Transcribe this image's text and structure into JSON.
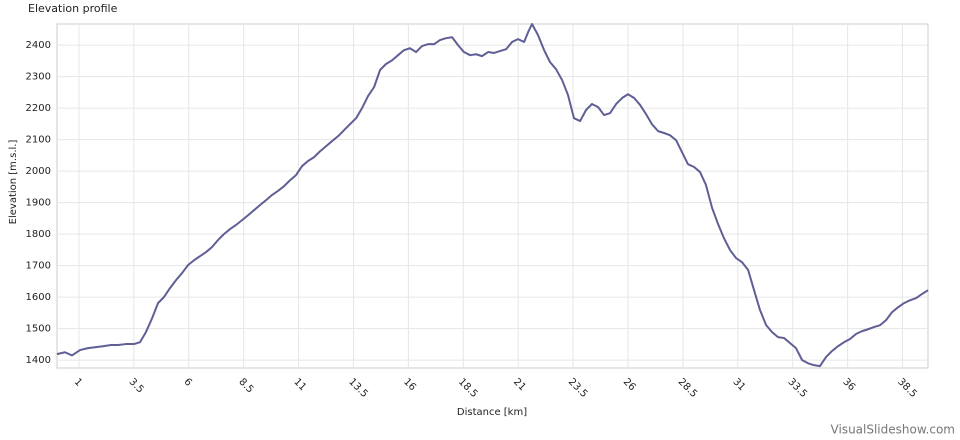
{
  "chart_data": {
    "type": "line",
    "title": "Elevation profile",
    "x_label": "Distance [km]",
    "y_label": "Elevation [m.s.l.]",
    "watermark": "VisualSlideshow.com",
    "xlim": [
      0,
      39.66
    ],
    "ylim": [
      1375,
      2467
    ],
    "xticks": [
      1,
      3.5,
      6,
      8.5,
      11,
      13.5,
      16,
      18.5,
      21,
      23.5,
      26,
      28.5,
      31,
      33.5,
      36,
      38.5
    ],
    "yticks": [
      1400,
      1500,
      1600,
      1700,
      1800,
      1900,
      2000,
      2100,
      2200,
      2300,
      2400
    ],
    "grid": true,
    "x": [
      0,
      0.36,
      0.68,
      1.05,
      1.41,
      1.73,
      2.09,
      2.46,
      2.78,
      3.14,
      3.51,
      3.78,
      4.05,
      4.33,
      4.6,
      4.87,
      5.15,
      5.42,
      5.69,
      5.97,
      6.24,
      6.51,
      6.79,
      7.06,
      7.33,
      7.6,
      7.88,
      8.15,
      8.42,
      8.7,
      8.97,
      9.24,
      9.52,
      9.79,
      10.06,
      10.34,
      10.61,
      10.88,
      11.16,
      11.43,
      11.7,
      11.98,
      12.25,
      12.52,
      12.8,
      13.07,
      13.34,
      13.62,
      13.89,
      14.16,
      14.44,
      14.71,
      14.98,
      15.26,
      15.53,
      15.8,
      16.07,
      16.35,
      16.62,
      16.89,
      17.17,
      17.44,
      17.71,
      17.99,
      18.26,
      18.53,
      18.81,
      19.08,
      19.35,
      19.63,
      19.9,
      20.17,
      20.45,
      20.72,
      20.99,
      21.27,
      21.45,
      21.63,
      21.9,
      22.18,
      22.45,
      22.72,
      23.0,
      23.27,
      23.54,
      23.82,
      24.09,
      24.36,
      24.64,
      24.91,
      25.18,
      25.46,
      25.73,
      26.0,
      26.28,
      26.55,
      26.82,
      27.09,
      27.37,
      27.64,
      27.91,
      28.19,
      28.46,
      28.73,
      29.01,
      29.28,
      29.55,
      29.83,
      30.1,
      30.37,
      30.65,
      30.92,
      31.19,
      31.47,
      31.74,
      32.01,
      32.29,
      32.56,
      32.83,
      33.11,
      33.38,
      33.65,
      33.93,
      34.2,
      34.47,
      34.74,
      35.02,
      35.29,
      35.56,
      35.84,
      36.11,
      36.38,
      36.66,
      36.93,
      37.2,
      37.48,
      37.75,
      38.02,
      38.3,
      38.57,
      38.84,
      39.12,
      39.39,
      39.66
    ],
    "series": [
      {
        "color": "#5f5f96",
        "values": [
          1419,
          1425,
          1415,
          1432,
          1438,
          1441,
          1444,
          1448,
          1448,
          1451,
          1451,
          1457,
          1489,
          1533,
          1581,
          1600,
          1629,
          1654,
          1676,
          1702,
          1717,
          1730,
          1743,
          1759,
          1781,
          1800,
          1816,
          1829,
          1844,
          1860,
          1876,
          1892,
          1908,
          1924,
          1937,
          1952,
          1971,
          1987,
          2016,
          2032,
          2044,
          2063,
          2079,
          2095,
          2111,
          2130,
          2149,
          2168,
          2200,
          2238,
          2267,
          2321,
          2340,
          2352,
          2368,
          2384,
          2390,
          2378,
          2397,
          2403,
          2403,
          2416,
          2422,
          2425,
          2400,
          2378,
          2368,
          2371,
          2365,
          2378,
          2375,
          2381,
          2387,
          2410,
          2419,
          2410,
          2441,
          2467,
          2432,
          2384,
          2346,
          2324,
          2289,
          2241,
          2168,
          2159,
          2194,
          2213,
          2203,
          2178,
          2184,
          2213,
          2232,
          2244,
          2232,
          2210,
          2181,
          2149,
          2127,
          2121,
          2114,
          2098,
          2060,
          2022,
          2013,
          1997,
          1956,
          1883,
          1832,
          1787,
          1749,
          1724,
          1711,
          1686,
          1622,
          1559,
          1511,
          1489,
          1473,
          1470,
          1454,
          1438,
          1400,
          1390,
          1384,
          1381,
          1410,
          1429,
          1444,
          1457,
          1467,
          1483,
          1492,
          1498,
          1505,
          1511,
          1527,
          1552,
          1568,
          1581,
          1590,
          1597,
          1610,
          1622
        ]
      }
    ]
  }
}
